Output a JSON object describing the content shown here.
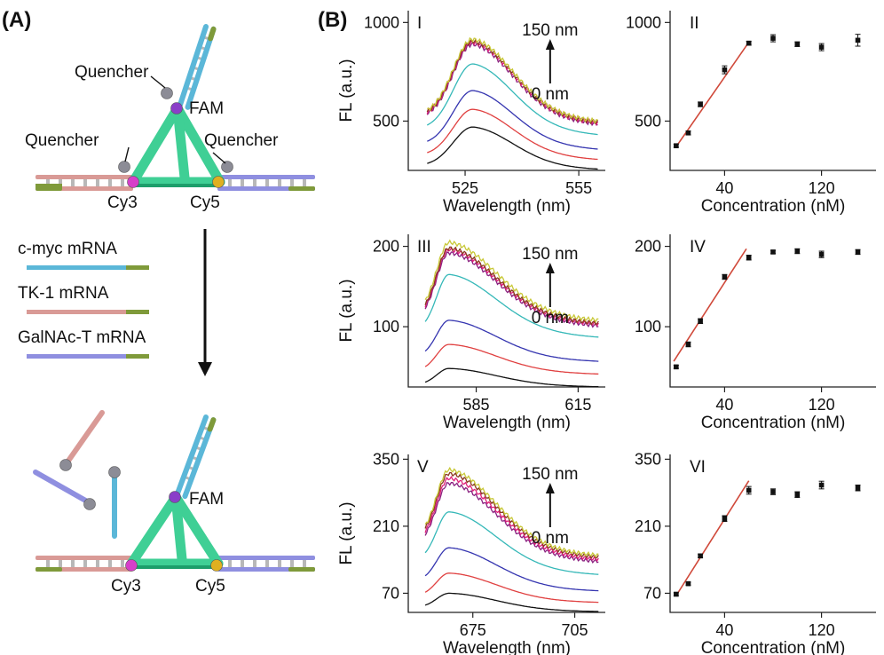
{
  "panel_a": {
    "label": "(A)",
    "top_labels": {
      "quencher_top": "Quencher",
      "fam": "FAM",
      "quencher_left": "Quencher",
      "quencher_right": "Quencher",
      "cy3": "Cy3",
      "cy5": "Cy5"
    },
    "legend": [
      {
        "label": "c-myc mRNA",
        "color": "#5bb7d8"
      },
      {
        "label": "TK-1 mRNA",
        "color": "#d99a96"
      },
      {
        "label": "GalNAc-T mRNA",
        "color": "#8f8fe0"
      }
    ],
    "bottom_labels": {
      "fam": "FAM",
      "cy3": "Cy3",
      "cy5": "Cy5"
    },
    "colors": {
      "tetra": "#3fcf95",
      "tetra_dark": "#1d9e6b",
      "end": "#7f9a3a",
      "quencher": "#8c8c96",
      "fam": "#8a3fc9",
      "cy3": "#d63fc9",
      "cy5": "#e0b020",
      "rung": "#b8b8b8"
    }
  },
  "panel_b": {
    "label": "(B)"
  },
  "chart_data": [
    {
      "type": "line",
      "roman": "I",
      "xlabel": "Wavelength (nm)",
      "ylabel": "FL (a.u.)",
      "x_ticks": [
        525,
        555
      ],
      "y_ticks": [
        500,
        1000
      ],
      "xlim": [
        510,
        562
      ],
      "ylim": [
        250,
        1060
      ],
      "arrow": {
        "top": "150 nm",
        "bottom": "0 nm"
      },
      "peak": 527,
      "tail": 0.6,
      "series": [
        {
          "peak_value": 470,
          "color": "#111111"
        },
        {
          "peak_value": 560,
          "color": "#e04040"
        },
        {
          "peak_value": 655,
          "color": "#3535b0"
        },
        {
          "peak_value": 790,
          "color": "#35b8b8"
        },
        {
          "peak_value": 890,
          "color": "#8a2080"
        },
        {
          "peak_value": 900,
          "color": "#e0207a"
        },
        {
          "peak_value": 905,
          "color": "#8a3a20"
        },
        {
          "peak_value": 915,
          "color": "#c8c838"
        }
      ]
    },
    {
      "type": "scatter",
      "roman": "II",
      "xlabel": "Concentration (nM)",
      "ylabel": "",
      "x_ticks": [
        40,
        120
      ],
      "y_ticks": [
        500,
        1000
      ],
      "xlim": [
        -5,
        165
      ],
      "ylim": [
        250,
        1060
      ],
      "points": [
        {
          "x": 0,
          "y": 375
        },
        {
          "x": 10,
          "y": 440
        },
        {
          "x": 20,
          "y": 585
        },
        {
          "x": 40,
          "y": 760
        },
        {
          "x": 60,
          "y": 895
        },
        {
          "x": 80,
          "y": 920
        },
        {
          "x": 100,
          "y": 890
        },
        {
          "x": 120,
          "y": 875
        },
        {
          "x": 150,
          "y": 910
        }
      ],
      "errors": [
        8,
        10,
        12,
        20,
        10,
        18,
        12,
        18,
        30
      ],
      "fit": {
        "x": [
          0,
          60
        ],
        "y": [
          370,
          900
        ]
      }
    },
    {
      "type": "line",
      "roman": "III",
      "xlabel": "Wavelength (nm)",
      "ylabel": "FL (a.u.)",
      "x_ticks": [
        585,
        615
      ],
      "y_ticks": [
        100,
        200
      ],
      "xlim": [
        565,
        623
      ],
      "ylim": [
        25,
        215
      ],
      "arrow": {
        "top": "150 nm",
        "bottom": "0 nm"
      },
      "peak": 577,
      "tail": 0.58,
      "series": [
        {
          "peak_value": 48,
          "color": "#111111"
        },
        {
          "peak_value": 78,
          "color": "#e04040"
        },
        {
          "peak_value": 108,
          "color": "#3535b0"
        },
        {
          "peak_value": 165,
          "color": "#35b8b8"
        },
        {
          "peak_value": 192,
          "color": "#8a2080"
        },
        {
          "peak_value": 196,
          "color": "#e0207a"
        },
        {
          "peak_value": 198,
          "color": "#8a3a20"
        },
        {
          "peak_value": 205,
          "color": "#c8c838"
        }
      ]
    },
    {
      "type": "scatter",
      "roman": "IV",
      "xlabel": "Concentration (nM)",
      "ylabel": "",
      "x_ticks": [
        40,
        120
      ],
      "y_ticks": [
        100,
        200
      ],
      "xlim": [
        -5,
        165
      ],
      "ylim": [
        25,
        215
      ],
      "points": [
        {
          "x": 0,
          "y": 50
        },
        {
          "x": 10,
          "y": 78
        },
        {
          "x": 20,
          "y": 107
        },
        {
          "x": 40,
          "y": 162
        },
        {
          "x": 60,
          "y": 186
        },
        {
          "x": 80,
          "y": 193
        },
        {
          "x": 100,
          "y": 194
        },
        {
          "x": 120,
          "y": 190
        },
        {
          "x": 150,
          "y": 193
        }
      ],
      "errors": [
        2,
        3,
        3,
        3,
        3,
        2,
        3,
        4,
        3
      ],
      "fit": {
        "x": [
          -2,
          58
        ],
        "y": [
          57,
          197
        ]
      }
    },
    {
      "type": "line",
      "roman": "V",
      "xlabel": "Wavelength (nm)",
      "ylabel": "FL (a.u.)",
      "x_ticks": [
        675,
        705
      ],
      "y_ticks": [
        70,
        210,
        350
      ],
      "xlim": [
        656,
        714
      ],
      "ylim": [
        30,
        360
      ],
      "arrow": {
        "top": "150 nm",
        "bottom": "0 nm"
      },
      "peak": 668,
      "tail": 0.5,
      "series": [
        {
          "peak_value": 70,
          "color": "#111111"
        },
        {
          "peak_value": 112,
          "color": "#e04040"
        },
        {
          "peak_value": 165,
          "color": "#3535b0"
        },
        {
          "peak_value": 240,
          "color": "#35b8b8"
        },
        {
          "peak_value": 300,
          "color": "#8a2080"
        },
        {
          "peak_value": 310,
          "color": "#e0207a"
        },
        {
          "peak_value": 320,
          "color": "#8a3a20"
        },
        {
          "peak_value": 328,
          "color": "#c8c838"
        }
      ]
    },
    {
      "type": "scatter",
      "roman": "VI",
      "xlabel": "Concentration (nM)",
      "ylabel": "",
      "x_ticks": [
        40,
        120
      ],
      "y_ticks": [
        70,
        210,
        350
      ],
      "xlim": [
        -5,
        165
      ],
      "ylim": [
        30,
        360
      ],
      "points": [
        {
          "x": 0,
          "y": 68
        },
        {
          "x": 10,
          "y": 90
        },
        {
          "x": 20,
          "y": 148
        },
        {
          "x": 40,
          "y": 226
        },
        {
          "x": 60,
          "y": 285
        },
        {
          "x": 80,
          "y": 282
        },
        {
          "x": 100,
          "y": 276
        },
        {
          "x": 120,
          "y": 296
        },
        {
          "x": 150,
          "y": 290
        }
      ],
      "errors": [
        3,
        3,
        4,
        6,
        8,
        6,
        6,
        8,
        6
      ],
      "fit": {
        "x": [
          0,
          60
        ],
        "y": [
          65,
          305
        ]
      }
    }
  ]
}
